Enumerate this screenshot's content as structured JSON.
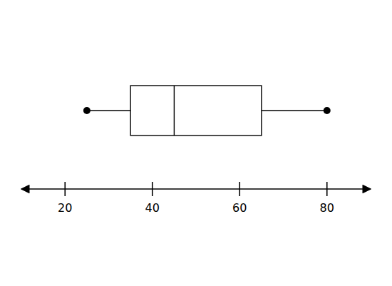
{
  "chart_data": {
    "type": "box",
    "orientation": "horizontal",
    "min": 25,
    "q1": 35,
    "median": 45,
    "q3": 65,
    "max": 80,
    "xlim": [
      10,
      90
    ],
    "xticks": [
      20,
      40,
      60,
      80
    ],
    "color": "black"
  }
}
